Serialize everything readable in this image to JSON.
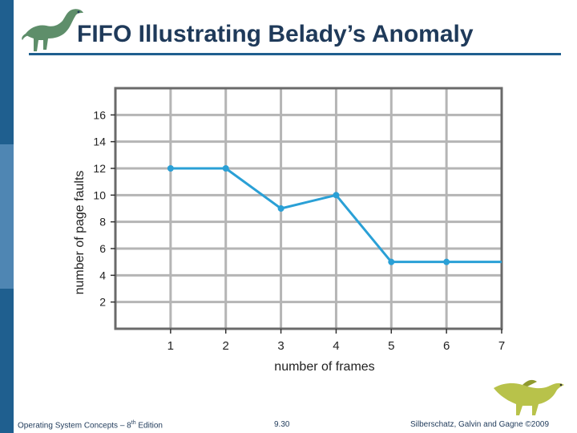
{
  "slide": {
    "title": "FIFO Illustrating Belady’s Anomaly",
    "footer_left_pre": "Operating System Concepts – 8",
    "footer_left_sup": "th",
    "footer_left_post": " Edition",
    "footer_center": "9.30",
    "footer_right": "Silberschatz, Galvin and Gagne ©2009",
    "accent_color": "#1f5f8f",
    "logo_icon": "dinosaur-icon"
  },
  "chart_data": {
    "type": "line",
    "title": "",
    "xlabel": "number of frames",
    "ylabel": "number of page faults",
    "x": [
      1,
      2,
      3,
      4,
      5,
      6,
      7
    ],
    "series": [
      {
        "values": [
          12,
          12,
          9,
          10,
          5,
          5,
          5
        ],
        "color": "#2aa0d6"
      }
    ],
    "xlim": [
      0,
      7
    ],
    "ylim": [
      0,
      18
    ],
    "x_ticks": [
      1,
      2,
      3,
      4,
      5,
      6,
      7
    ],
    "y_ticks": [
      2,
      4,
      6,
      8,
      10,
      12,
      14,
      16
    ],
    "grid": true,
    "legend": "none"
  }
}
